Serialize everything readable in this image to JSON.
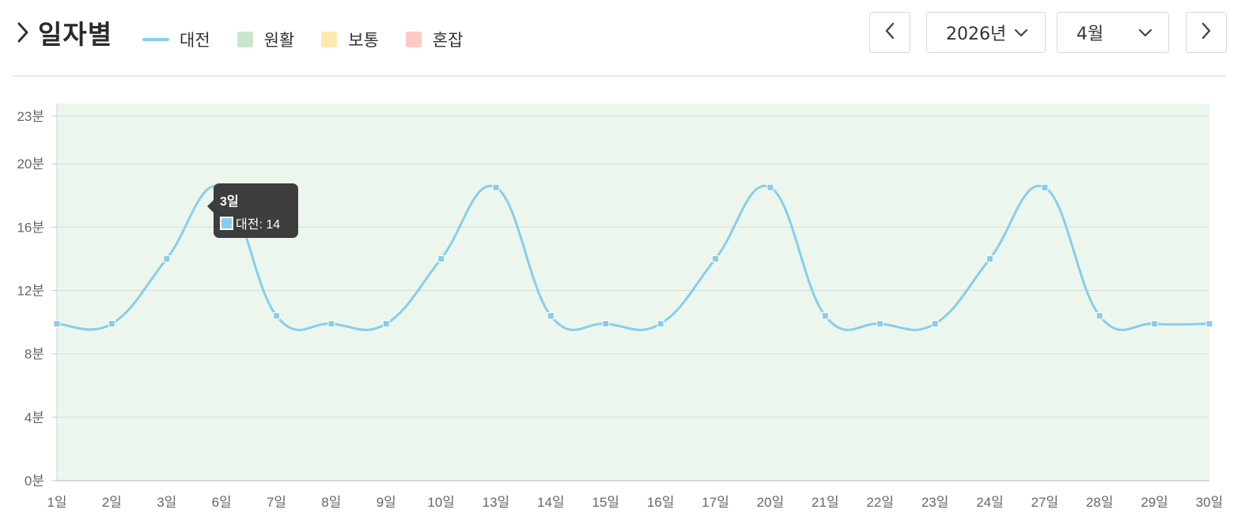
{
  "header": {
    "title": "일자별",
    "legend": [
      {
        "label": "대전",
        "color": "#87ceeb",
        "kind": "line",
        "icon": "line-swatch"
      },
      {
        "label": "원활",
        "color": "#c8e6c9",
        "kind": "box",
        "icon": "square-swatch"
      },
      {
        "label": "보통",
        "color": "#ffe9b0",
        "kind": "box",
        "icon": "square-swatch"
      },
      {
        "label": "혼잡",
        "color": "#ffc9c6",
        "kind": "box",
        "icon": "square-swatch"
      }
    ]
  },
  "controls": {
    "prev_icon": "chevron-left-icon",
    "year": "2026년",
    "month": "4월",
    "next_icon": "chevron-right-icon"
  },
  "tooltip": {
    "title": "3일",
    "series_label": "대전: 14",
    "color": "#87ceeb"
  },
  "chart_data": {
    "type": "line",
    "categories": [
      "1일",
      "2일",
      "3일",
      "6일",
      "7일",
      "8일",
      "9일",
      "10일",
      "13일",
      "14일",
      "15일",
      "16일",
      "17일",
      "20일",
      "21일",
      "22일",
      "23일",
      "24일",
      "27일",
      "28일",
      "29일",
      "30일"
    ],
    "series": [
      {
        "name": "대전",
        "color": "#87ceeb",
        "values": [
          9.9,
          9.9,
          14,
          18.5,
          10.4,
          9.9,
          9.9,
          14,
          18.5,
          10.4,
          9.9,
          9.9,
          14,
          18.5,
          10.4,
          9.9,
          9.9,
          14,
          18.5,
          10.4,
          9.9,
          9.9
        ]
      }
    ],
    "y_ticks": [
      0,
      4,
      8,
      12,
      16,
      20,
      23
    ],
    "y_tick_labels": [
      "0분",
      "4분",
      "8분",
      "12분",
      "16분",
      "20분",
      "23분"
    ],
    "ylim": [
      0,
      23
    ],
    "background_band_color": "#edf6ec",
    "grid": true,
    "smooth": true
  }
}
